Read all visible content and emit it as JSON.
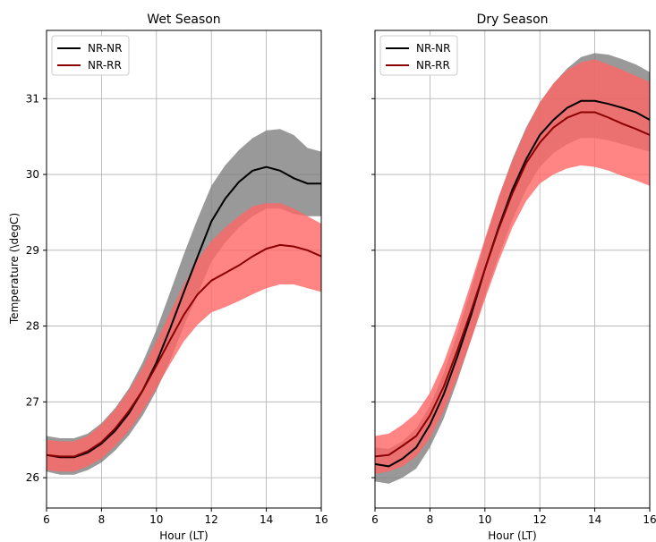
{
  "figure": {
    "ylabel": "Temperature (\\degC)"
  },
  "colors": {
    "nr_nr_line": "#000000",
    "nr_nr_band": "#808080",
    "nr_rr_line": "#8b0000",
    "nr_rr_band": "#ff6666",
    "grid": "#b0b0b0"
  },
  "chart_data": [
    {
      "type": "line",
      "title": "Wet Season",
      "xlabel": "Hour (LT)",
      "ylabel": "Temperature (\\degC)",
      "xlim": [
        6,
        16
      ],
      "ylim": [
        25.6,
        31.9
      ],
      "xticks": [
        6,
        8,
        10,
        12,
        14,
        16
      ],
      "yticks": [
        26,
        27,
        28,
        29,
        30,
        31
      ],
      "show_yticklabels": true,
      "grid": true,
      "legend": "top-left",
      "x": [
        6,
        6.5,
        7,
        7.5,
        8,
        8.5,
        9,
        9.5,
        10,
        10.5,
        11,
        11.5,
        12,
        12.5,
        13,
        13.5,
        14,
        14.5,
        15,
        15.5,
        16
      ],
      "series": [
        {
          "name": "NR-NR",
          "values": [
            26.3,
            26.27,
            26.27,
            26.33,
            26.45,
            26.62,
            26.85,
            27.15,
            27.52,
            27.97,
            28.45,
            28.92,
            29.38,
            29.68,
            29.9,
            30.05,
            30.1,
            30.05,
            29.95,
            29.88,
            29.88
          ],
          "upper": [
            26.55,
            26.52,
            26.52,
            26.58,
            26.72,
            26.92,
            27.18,
            27.52,
            27.95,
            28.45,
            28.95,
            29.42,
            29.85,
            30.12,
            30.32,
            30.48,
            30.58,
            30.6,
            30.52,
            30.35,
            30.3
          ],
          "lower": [
            26.08,
            26.04,
            26.04,
            26.1,
            26.2,
            26.36,
            26.56,
            26.82,
            27.15,
            27.55,
            28.0,
            28.42,
            28.85,
            29.1,
            29.3,
            29.45,
            29.55,
            29.55,
            29.48,
            29.45,
            29.45
          ]
        },
        {
          "name": "NR-RR",
          "values": [
            26.3,
            26.28,
            26.28,
            26.35,
            26.47,
            26.65,
            26.88,
            27.15,
            27.48,
            27.82,
            28.15,
            28.42,
            28.6,
            28.7,
            28.8,
            28.92,
            29.02,
            29.07,
            29.05,
            29.0,
            28.92
          ],
          "upper": [
            26.5,
            26.48,
            26.48,
            26.55,
            26.7,
            26.9,
            27.15,
            27.45,
            27.8,
            28.18,
            28.55,
            28.88,
            29.12,
            29.3,
            29.45,
            29.58,
            29.62,
            29.62,
            29.55,
            29.45,
            29.35
          ],
          "lower": [
            26.1,
            26.08,
            26.08,
            26.15,
            26.25,
            26.42,
            26.62,
            26.88,
            27.18,
            27.5,
            27.8,
            28.02,
            28.18,
            28.25,
            28.33,
            28.42,
            28.5,
            28.55,
            28.55,
            28.5,
            28.45
          ]
        }
      ]
    },
    {
      "type": "line",
      "title": "Dry Season",
      "xlabel": "Hour (LT)",
      "ylabel": "",
      "xlim": [
        6,
        16
      ],
      "ylim": [
        25.6,
        31.9
      ],
      "xticks": [
        6,
        8,
        10,
        12,
        14,
        16
      ],
      "yticks": [
        26,
        27,
        28,
        29,
        30,
        31
      ],
      "show_yticklabels": false,
      "grid": true,
      "legend": "top-left",
      "x": [
        6,
        6.5,
        7,
        7.5,
        8,
        8.5,
        9,
        9.5,
        10,
        10.5,
        11,
        11.5,
        12,
        12.5,
        13,
        13.5,
        14,
        14.5,
        15,
        15.5,
        16
      ],
      "series": [
        {
          "name": "NR-NR",
          "values": [
            26.18,
            26.15,
            26.25,
            26.4,
            26.7,
            27.1,
            27.6,
            28.15,
            28.75,
            29.3,
            29.8,
            30.2,
            30.52,
            30.72,
            30.88,
            30.97,
            30.97,
            30.93,
            30.88,
            30.82,
            30.72
          ],
          "upper": [
            26.4,
            26.38,
            26.48,
            26.65,
            26.95,
            27.38,
            27.9,
            28.5,
            29.12,
            29.7,
            30.2,
            30.62,
            30.95,
            31.2,
            31.4,
            31.55,
            31.6,
            31.58,
            31.52,
            31.45,
            31.35
          ],
          "lower": [
            25.95,
            25.92,
            26.0,
            26.12,
            26.4,
            26.78,
            27.28,
            27.82,
            28.4,
            28.92,
            29.4,
            29.8,
            30.1,
            30.28,
            30.4,
            30.48,
            30.48,
            30.45,
            30.4,
            30.35,
            30.3
          ]
        },
        {
          "name": "NR-RR",
          "values": [
            26.28,
            26.3,
            26.42,
            26.55,
            26.82,
            27.2,
            27.68,
            28.2,
            28.75,
            29.28,
            29.75,
            30.15,
            30.42,
            30.62,
            30.75,
            30.82,
            30.82,
            30.75,
            30.67,
            30.6,
            30.52
          ],
          "upper": [
            26.55,
            26.58,
            26.7,
            26.85,
            27.12,
            27.52,
            28.02,
            28.58,
            29.15,
            29.7,
            30.18,
            30.6,
            30.95,
            31.2,
            31.38,
            31.48,
            31.52,
            31.45,
            31.38,
            31.3,
            31.22
          ],
          "lower": [
            26.05,
            26.08,
            26.15,
            26.28,
            26.52,
            26.88,
            27.32,
            27.82,
            28.35,
            28.85,
            29.3,
            29.65,
            29.88,
            30.0,
            30.08,
            30.12,
            30.1,
            30.05,
            29.98,
            29.92,
            29.85
          ]
        }
      ]
    }
  ]
}
